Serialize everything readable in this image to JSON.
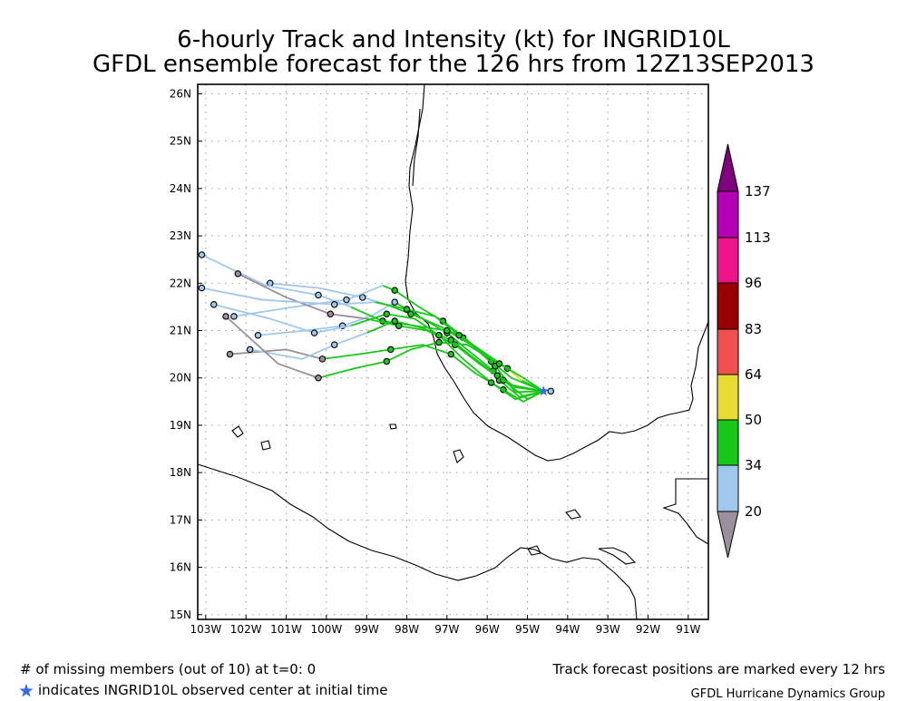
{
  "title": {
    "line1": "6-hourly Track and Intensity (kt) for INGRID10L",
    "line2": "GFDL ensemble forecast for the 126 hrs from 12Z13SEP2013"
  },
  "axes": {
    "lat_labels": [
      "26N",
      "25N",
      "24N",
      "23N",
      "22N",
      "21N",
      "20N",
      "19N",
      "18N",
      "17N",
      "16N",
      "15N"
    ],
    "lon_labels": [
      "103W",
      "102W",
      "101W",
      "100W",
      "99W",
      "98W",
      "97W",
      "96W",
      "95W",
      "94W",
      "93W",
      "92W",
      "91W"
    ]
  },
  "colorbar": {
    "labels": [
      "137",
      "113",
      "96",
      "83",
      "64",
      "50",
      "34",
      "20"
    ],
    "colors": [
      "#9b8f9b",
      "#a0c8ec",
      "#18c818",
      "#e6dc32",
      "#f05050",
      "#960000",
      "#f0148c",
      "#b400b4",
      "#800080"
    ]
  },
  "footer": {
    "missing": "# of missing members (out of 10) at t=0: 0",
    "observed": "indicates INGRID10L observed center at initial time",
    "note": "Track forecast positions are marked every 12 hrs",
    "credit": "GFDL Hurricane Dynamics Group"
  },
  "chart_data": {
    "type": "map",
    "lon_range": [
      -103.2,
      -90.5
    ],
    "lat_range": [
      14.9,
      26.2
    ],
    "grid": true,
    "initial_center": {
      "lon": -94.6,
      "lat": 19.72
    },
    "tracks": [
      {
        "intensity": [
          "34-50",
          "34-50",
          "34-50",
          "34-50",
          "34-50",
          "34-50",
          "20-34",
          "20-34",
          "20-34",
          "20-34",
          "20-34"
        ],
        "points": [
          [
            -94.6,
            19.72
          ],
          [
            -95.3,
            19.8
          ],
          [
            -95.85,
            20.15
          ],
          [
            -96.5,
            20.6
          ],
          [
            -97.0,
            20.95
          ],
          [
            -97.7,
            21.3
          ],
          [
            -98.3,
            21.6
          ],
          [
            -98.9,
            21.3
          ],
          [
            -99.6,
            21.1
          ],
          [
            -100.5,
            21.0
          ],
          [
            -101.7,
            20.9
          ]
        ]
      },
      {
        "intensity": [
          "34-50",
          "34-50",
          "34-50",
          "34-50",
          "34-50",
          "34-50",
          "34-50",
          "20-34",
          "20-34",
          "20-34",
          "20-34"
        ],
        "points": [
          [
            -94.6,
            19.72
          ],
          [
            -95.2,
            19.6
          ],
          [
            -95.7,
            19.95
          ],
          [
            -96.0,
            20.45
          ],
          [
            -96.6,
            20.85
          ],
          [
            -97.2,
            21.1
          ],
          [
            -97.9,
            21.35
          ],
          [
            -98.5,
            21.55
          ],
          [
            -99.1,
            21.7
          ],
          [
            -100.2,
            21.9
          ],
          [
            -101.4,
            22.0
          ]
        ]
      },
      {
        "intensity": [
          "34-50",
          "34-50",
          "34-50",
          "34-50",
          "34-50",
          "34-50",
          "34-50",
          "34-50",
          "<20",
          "<20",
          "<20"
        ],
        "points": [
          [
            -94.6,
            19.72
          ],
          [
            -95.1,
            19.5
          ],
          [
            -95.6,
            19.75
          ],
          [
            -96.3,
            20.1
          ],
          [
            -96.9,
            20.5
          ],
          [
            -97.6,
            20.7
          ],
          [
            -98.4,
            20.6
          ],
          [
            -99.2,
            20.5
          ],
          [
            -100.1,
            20.4
          ],
          [
            -101.0,
            20.6
          ],
          [
            -102.4,
            20.5
          ]
        ]
      },
      {
        "intensity": [
          "34-50",
          "34-50",
          "34-50",
          "34-50",
          "34-50",
          "34-50",
          "34-50",
          "20-34",
          "20-34",
          "20-34",
          "20-34"
        ],
        "points": [
          [
            -94.6,
            19.72
          ],
          [
            -95.4,
            20.0
          ],
          [
            -95.9,
            20.35
          ],
          [
            -96.5,
            20.8
          ],
          [
            -97.1,
            21.2
          ],
          [
            -97.7,
            21.5
          ],
          [
            -98.3,
            21.85
          ],
          [
            -98.6,
            21.95
          ],
          [
            -99.5,
            21.65
          ],
          [
            -100.8,
            21.5
          ],
          [
            -102.3,
            21.3
          ]
        ]
      },
      {
        "intensity": [
          "34-50",
          "34-50",
          "34-50",
          "34-50",
          "34-50",
          "34-50",
          "34-50",
          "20-34",
          "20-34",
          "20-34",
          "20-34"
        ],
        "points": [
          [
            -94.6,
            19.72
          ],
          [
            -95.3,
            19.7
          ],
          [
            -95.8,
            20.25
          ],
          [
            -96.4,
            20.7
          ],
          [
            -97.0,
            21.0
          ],
          [
            -97.8,
            21.1
          ],
          [
            -98.6,
            21.2
          ],
          [
            -99.4,
            21.5
          ],
          [
            -100.2,
            21.75
          ],
          [
            -101.5,
            21.95
          ],
          [
            -103.1,
            22.6
          ]
        ]
      },
      {
        "intensity": [
          "34-50",
          "34-50",
          "34-50",
          "34-50",
          "34-50",
          "34-50",
          "34-50",
          "<20",
          "<20",
          "<20",
          "<20"
        ],
        "points": [
          [
            -94.6,
            19.72
          ],
          [
            -95.0,
            19.55
          ],
          [
            -95.6,
            19.95
          ],
          [
            -96.2,
            20.3
          ],
          [
            -96.8,
            20.7
          ],
          [
            -97.5,
            21.0
          ],
          [
            -98.2,
            21.1
          ],
          [
            -99.0,
            21.25
          ],
          [
            -99.9,
            21.35
          ],
          [
            -101.0,
            21.7
          ],
          [
            -102.2,
            22.2
          ]
        ]
      },
      {
        "intensity": [
          "34-50",
          "50-64",
          "34-50",
          "34-50",
          "34-50",
          "34-50",
          "34-50",
          "20-34",
          "20-34",
          "20-34",
          "20-34"
        ],
        "points": [
          [
            -94.6,
            19.72
          ],
          [
            -95.15,
            19.95
          ],
          [
            -95.5,
            20.2
          ],
          [
            -96.1,
            20.55
          ],
          [
            -96.7,
            20.9
          ],
          [
            -97.3,
            21.3
          ],
          [
            -98.0,
            21.45
          ],
          [
            -98.8,
            21.6
          ],
          [
            -99.8,
            21.55
          ],
          [
            -101.6,
            21.65
          ],
          [
            -103.1,
            21.9
          ]
        ]
      },
      {
        "intensity": [
          "34-50",
          "34-50",
          "34-50",
          "34-50",
          "34-50",
          "34-50",
          "34-50",
          "20-34",
          "20-34",
          "20-34",
          "20-34"
        ],
        "points": [
          [
            -94.6,
            19.72
          ],
          [
            -95.4,
            19.85
          ],
          [
            -95.75,
            20.05
          ],
          [
            -96.3,
            20.4
          ],
          [
            -96.9,
            20.8
          ],
          [
            -97.6,
            21.05
          ],
          [
            -98.3,
            21.2
          ],
          [
            -99.0,
            20.95
          ],
          [
            -99.8,
            20.7
          ],
          [
            -100.6,
            20.4
          ],
          [
            -101.9,
            20.6
          ]
        ]
      },
      {
        "intensity": [
          "34-50",
          "34-50",
          "34-50",
          "34-50",
          "34-50",
          "34-50",
          "34-50",
          "34-50",
          "<20",
          "<20",
          "<20"
        ],
        "points": [
          [
            -94.6,
            19.72
          ],
          [
            -95.1,
            20.0
          ],
          [
            -95.7,
            20.3
          ],
          [
            -96.5,
            20.7
          ],
          [
            -97.2,
            20.75
          ],
          [
            -97.9,
            20.6
          ],
          [
            -98.5,
            20.35
          ],
          [
            -99.3,
            20.2
          ],
          [
            -100.2,
            20.0
          ],
          [
            -101.2,
            20.3
          ],
          [
            -102.5,
            21.3
          ]
        ]
      },
      {
        "intensity": [
          "34-50",
          "34-50",
          "34-50",
          "34-50",
          "34-50",
          "34-50",
          "34-50",
          "20-34",
          "20-34",
          "20-34",
          "20-34"
        ],
        "points": [
          [
            -94.6,
            19.72
          ],
          [
            -95.3,
            19.55
          ],
          [
            -95.9,
            19.9
          ],
          [
            -96.6,
            20.4
          ],
          [
            -97.2,
            20.9
          ],
          [
            -97.8,
            21.25
          ],
          [
            -98.5,
            21.35
          ],
          [
            -99.4,
            21.1
          ],
          [
            -100.3,
            20.95
          ],
          [
            -101.4,
            21.25
          ],
          [
            -102.8,
            21.55
          ]
        ]
      }
    ]
  }
}
